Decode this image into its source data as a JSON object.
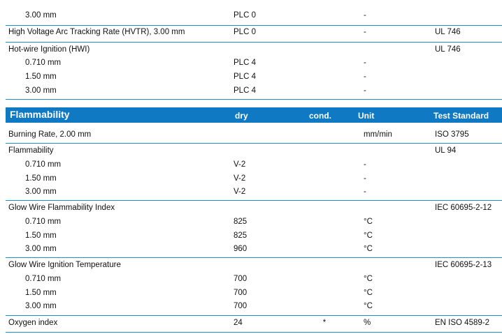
{
  "top_rows": [
    {
      "name": "3.00 mm",
      "indent": true,
      "dry": "PLC 0",
      "cond": "",
      "unit": "-",
      "std": ""
    },
    {
      "name": "High Voltage Arc Tracking Rate (HVTR), 3.00 mm",
      "indent": false,
      "dry": "PLC 0",
      "cond": "",
      "unit": "-",
      "std": "UL 746"
    },
    {
      "name": "Hot-wire Ignition (HWI)",
      "indent": false,
      "dry": "",
      "cond": "",
      "unit": "",
      "std": "UL 746"
    },
    {
      "name": "0.710 mm",
      "indent": true,
      "dry": "PLC 4",
      "cond": "",
      "unit": "-",
      "std": ""
    },
    {
      "name": "1.50 mm",
      "indent": true,
      "dry": "PLC 4",
      "cond": "",
      "unit": "-",
      "std": ""
    },
    {
      "name": "3.00 mm",
      "indent": true,
      "dry": "PLC 4",
      "cond": "",
      "unit": "-",
      "std": ""
    }
  ],
  "section": {
    "title": "Flammability",
    "col_dry": "dry",
    "col_cond": "cond.",
    "col_unit": "Unit",
    "col_std": "Test Standard"
  },
  "rows": [
    {
      "name": "Burning Rate, 2.00 mm",
      "indent": false,
      "dry": "",
      "cond": "",
      "unit": "mm/min",
      "std": "ISO 3795"
    },
    {
      "name": "Flammability",
      "indent": false,
      "dry": "",
      "cond": "",
      "unit": "",
      "std": "UL 94"
    },
    {
      "name": "0.710 mm",
      "indent": true,
      "dry": "V-2",
      "cond": "",
      "unit": "-",
      "std": ""
    },
    {
      "name": "1.50 mm",
      "indent": true,
      "dry": "V-2",
      "cond": "",
      "unit": "-",
      "std": ""
    },
    {
      "name": "3.00 mm",
      "indent": true,
      "dry": "V-2",
      "cond": "",
      "unit": "-",
      "std": ""
    },
    {
      "name": "Glow Wire Flammability Index",
      "indent": false,
      "dry": "",
      "cond": "",
      "unit": "",
      "std": "IEC 60695-2-12"
    },
    {
      "name": "0.710 mm",
      "indent": true,
      "dry": "825",
      "cond": "",
      "unit": "°C",
      "std": ""
    },
    {
      "name": "1.50 mm",
      "indent": true,
      "dry": "825",
      "cond": "",
      "unit": "°C",
      "std": ""
    },
    {
      "name": "3.00 mm",
      "indent": true,
      "dry": "960",
      "cond": "",
      "unit": "°C",
      "std": ""
    },
    {
      "name": "Glow Wire Ignition Temperature",
      "indent": false,
      "dry": "",
      "cond": "",
      "unit": "",
      "std": "IEC 60695-2-13"
    },
    {
      "name": "0.710 mm",
      "indent": true,
      "dry": "700",
      "cond": "",
      "unit": "°C",
      "std": ""
    },
    {
      "name": "1.50 mm",
      "indent": true,
      "dry": "700",
      "cond": "",
      "unit": "°C",
      "std": ""
    },
    {
      "name": "3.00 mm",
      "indent": true,
      "dry": "700",
      "cond": "",
      "unit": "°C",
      "std": ""
    },
    {
      "name": "Oxygen index",
      "indent": false,
      "dry": "24",
      "cond": "*",
      "unit": "%",
      "std": "EN ISO 4589-2"
    }
  ],
  "colors": {
    "header_bg": "#0f79c3",
    "rule": "#1a8fd0"
  }
}
